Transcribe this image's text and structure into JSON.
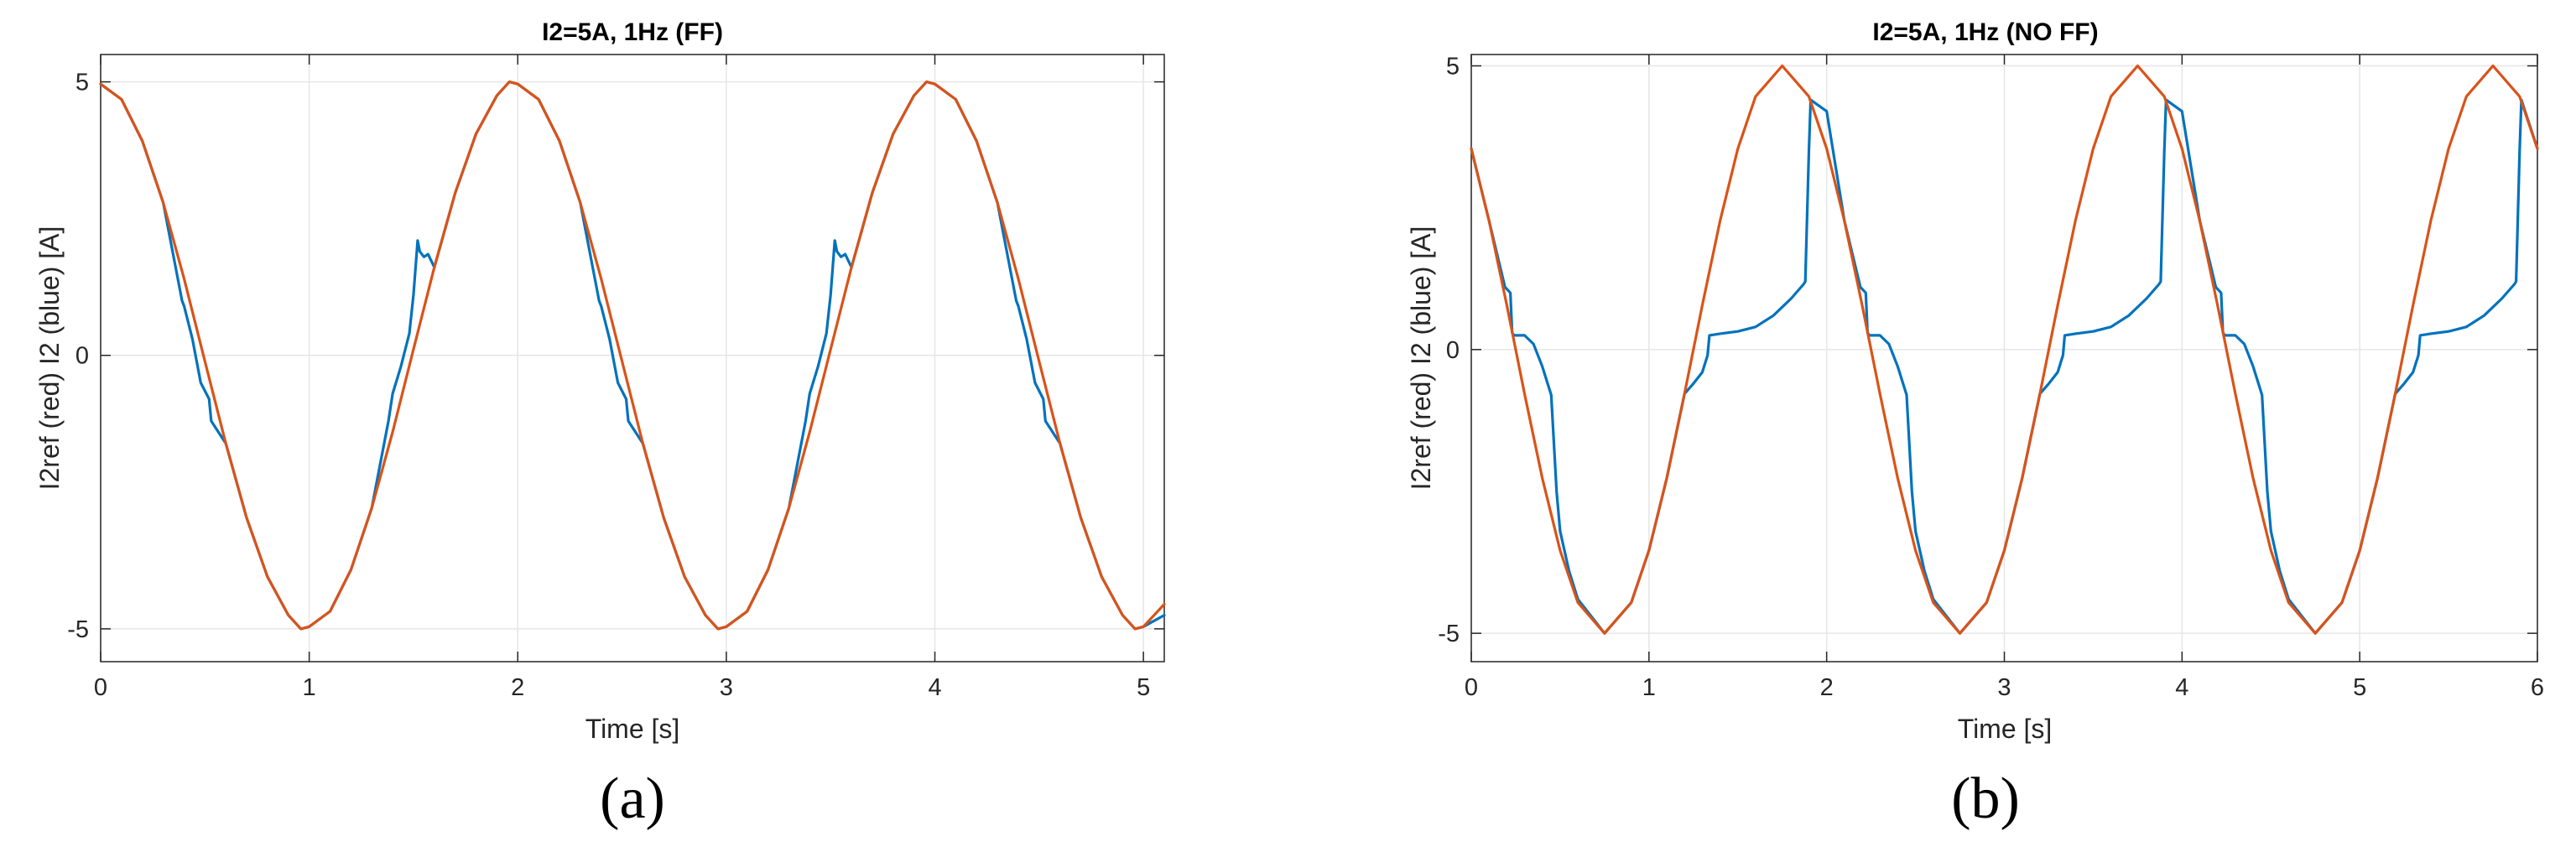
{
  "colors": {
    "measured": "#0072BD",
    "reference": "#D95319",
    "grid": "#e6e6e6",
    "axis": "#262626"
  },
  "chart_data": [
    {
      "type": "line",
      "title": "I2=5A, 1Hz (FF)",
      "panel_label": "(a)",
      "xlabel": "Time [s]",
      "ylabel": "I2ref (red)  I2 (blue) [A]",
      "xlim": [
        0,
        5.1
      ],
      "ylim": [
        -5.6,
        5.5
      ],
      "xticks": [
        0,
        1,
        2,
        3,
        4,
        5
      ],
      "yticks": [
        -5,
        0,
        5
      ],
      "xtick_labels": [
        "0",
        "1",
        "2",
        "3",
        "4",
        "5"
      ],
      "ytick_labels": [
        "-5",
        "0",
        "5"
      ],
      "grid": true,
      "series": [
        {
          "color": "#D95319",
          "x": [
            0,
            0.1,
            0.2,
            0.3,
            0.4,
            0.5,
            0.6,
            0.7,
            0.8,
            0.9,
            0.96,
            1.0,
            1.1,
            1.2,
            1.3,
            1.4,
            1.5,
            1.6,
            1.7,
            1.8,
            1.9,
            1.96,
            2.0,
            2.1,
            2.2,
            2.3,
            2.4,
            2.5,
            2.6,
            2.7,
            2.8,
            2.9,
            2.96,
            3.0,
            3.1,
            3.2,
            3.3,
            3.4,
            3.5,
            3.6,
            3.7,
            3.8,
            3.9,
            3.96,
            4.0,
            4.1,
            4.2,
            4.3,
            4.4,
            4.5,
            4.6,
            4.7,
            4.8,
            4.9,
            4.96,
            5.0,
            5.1
          ],
          "y": [
            4.96,
            4.68,
            3.92,
            2.79,
            1.4,
            -0.11,
            -1.61,
            -2.97,
            -4.05,
            -4.75,
            -5.0,
            -4.96,
            -4.68,
            -3.92,
            -2.79,
            -1.4,
            0.11,
            1.61,
            2.97,
            4.05,
            4.75,
            5.0,
            4.96,
            4.68,
            3.92,
            2.79,
            1.4,
            -0.11,
            -1.61,
            -2.97,
            -4.05,
            -4.75,
            -5.0,
            -4.96,
            -4.68,
            -3.92,
            -2.79,
            -1.4,
            0.11,
            1.61,
            2.97,
            4.05,
            4.75,
            5.0,
            4.96,
            4.68,
            3.92,
            2.79,
            1.4,
            -0.11,
            -1.61,
            -2.97,
            -4.05,
            -4.75,
            -5.0,
            -4.96,
            -4.55
          ]
        },
        {
          "color": "#0072BD",
          "x": [
            0,
            0.1,
            0.2,
            0.3,
            0.39,
            0.4,
            0.44,
            0.48,
            0.52,
            0.53,
            0.6,
            0.7,
            0.8,
            0.9,
            0.96,
            1.0,
            1.1,
            1.2,
            1.3,
            1.38,
            1.4,
            1.44,
            1.48,
            1.5,
            1.52,
            1.53,
            1.55,
            1.57,
            1.6,
            1.7,
            1.8,
            1.9,
            1.96,
            2.0,
            2.1,
            2.2,
            2.3,
            2.39,
            2.4,
            2.44,
            2.48,
            2.52,
            2.53,
            2.6,
            2.7,
            2.8,
            2.9,
            2.96,
            3.0,
            3.1,
            3.2,
            3.3,
            3.38,
            3.4,
            3.44,
            3.48,
            3.5,
            3.52,
            3.53,
            3.55,
            3.57,
            3.6,
            3.7,
            3.8,
            3.9,
            3.96,
            4.0,
            4.1,
            4.2,
            4.3,
            4.39,
            4.4,
            4.44,
            4.48,
            4.52,
            4.53,
            4.6,
            4.7,
            4.8,
            4.9,
            4.96,
            5.0,
            5.1
          ],
          "y": [
            4.96,
            4.68,
            3.92,
            2.79,
            1.0,
            0.9,
            0.3,
            -0.5,
            -0.8,
            -1.2,
            -1.61,
            -2.97,
            -4.05,
            -4.75,
            -5.0,
            -4.96,
            -4.68,
            -3.92,
            -2.79,
            -1.2,
            -0.7,
            -0.2,
            0.4,
            1.1,
            2.1,
            1.9,
            1.8,
            1.85,
            1.61,
            2.97,
            4.05,
            4.75,
            5.0,
            4.96,
            4.68,
            3.92,
            2.79,
            1.0,
            0.9,
            0.3,
            -0.5,
            -0.8,
            -1.2,
            -1.61,
            -2.97,
            -4.05,
            -4.75,
            -5.0,
            -4.96,
            -4.68,
            -3.92,
            -2.79,
            -1.2,
            -0.7,
            -0.2,
            0.4,
            1.1,
            2.1,
            1.9,
            1.8,
            1.85,
            1.61,
            2.97,
            4.05,
            4.75,
            5.0,
            4.96,
            4.68,
            3.92,
            2.79,
            1.0,
            0.9,
            0.3,
            -0.5,
            -0.8,
            -1.2,
            -1.61,
            -2.97,
            -4.05,
            -4.75,
            -5.0,
            -4.96,
            -4.75
          ]
        }
      ]
    },
    {
      "type": "line",
      "title": "I2=5A, 1Hz (NO FF)",
      "panel_label": "(b)",
      "xlabel": "Time [s]",
      "ylabel": "I2ref (red)  I2 (blue) [A]",
      "xlim": [
        0,
        6
      ],
      "ylim": [
        -5.5,
        5.2
      ],
      "xticks": [
        0,
        1,
        2,
        3,
        4,
        5,
        6
      ],
      "yticks": [
        -5,
        0,
        5
      ],
      "xtick_labels": [
        "0",
        "1",
        "2",
        "3",
        "4",
        "5",
        "6"
      ],
      "ytick_labels": [
        "-5",
        "0",
        "5"
      ],
      "grid": true,
      "series": [
        {
          "color": "#D95319",
          "x": [
            0,
            0.1,
            0.2,
            0.3,
            0.4,
            0.5,
            0.6,
            0.75,
            0.9,
            1.0,
            1.1,
            1.2,
            1.3,
            1.4,
            1.5,
            1.6,
            1.75,
            1.9,
            2.0,
            2.1,
            2.2,
            2.3,
            2.4,
            2.5,
            2.6,
            2.75,
            2.9,
            3.0,
            3.1,
            3.2,
            3.3,
            3.4,
            3.5,
            3.6,
            3.75,
            3.9,
            4.0,
            4.1,
            4.2,
            4.3,
            4.4,
            4.5,
            4.6,
            4.75,
            4.9,
            5.0,
            5.1,
            5.2,
            5.3,
            5.4,
            5.5,
            5.6,
            5.75,
            5.9,
            6.0
          ],
          "y": [
            3.54,
            2.27,
            0.78,
            -0.78,
            -2.27,
            -3.54,
            -4.46,
            -5.0,
            -4.46,
            -3.54,
            -2.27,
            -0.78,
            0.78,
            2.27,
            3.54,
            4.46,
            5.0,
            4.46,
            3.54,
            2.27,
            0.78,
            -0.78,
            -2.27,
            -3.54,
            -4.46,
            -5.0,
            -4.46,
            -3.54,
            -2.27,
            -0.78,
            0.78,
            2.27,
            3.54,
            4.46,
            5.0,
            4.46,
            3.54,
            2.27,
            0.78,
            -0.78,
            -2.27,
            -3.54,
            -4.46,
            -5.0,
            -4.46,
            -3.54,
            -2.27,
            -0.78,
            0.78,
            2.27,
            3.54,
            4.46,
            5.0,
            4.46,
            3.54
          ]
        },
        {
          "color": "#0072BD",
          "x": [
            0,
            0.1,
            0.19,
            0.22,
            0.23,
            0.24,
            0.3,
            0.35,
            0.4,
            0.45,
            0.48,
            0.5,
            0.55,
            0.6,
            0.75,
            0.9,
            1.0,
            1.1,
            1.2,
            1.25,
            1.3,
            1.33,
            1.34,
            1.4,
            1.5,
            1.6,
            1.7,
            1.8,
            1.87,
            1.88,
            1.9,
            1.91,
            2.0,
            2.1,
            2.19,
            2.22,
            2.23,
            2.24,
            2.3,
            2.35,
            2.4,
            2.45,
            2.48,
            2.5,
            2.55,
            2.6,
            2.75,
            2.9,
            3.0,
            3.1,
            3.2,
            3.25,
            3.3,
            3.33,
            3.34,
            3.4,
            3.5,
            3.6,
            3.7,
            3.8,
            3.87,
            3.88,
            3.9,
            3.91,
            4.0,
            4.1,
            4.19,
            4.22,
            4.23,
            4.24,
            4.3,
            4.35,
            4.4,
            4.45,
            4.48,
            4.5,
            4.55,
            4.6,
            4.75,
            4.9,
            5.0,
            5.1,
            5.2,
            5.25,
            5.3,
            5.33,
            5.34,
            5.4,
            5.5,
            5.6,
            5.7,
            5.8,
            5.87,
            5.88,
            5.9,
            5.91,
            6.0
          ],
          "y": [
            3.54,
            2.27,
            1.1,
            1.0,
            0.3,
            0.25,
            0.25,
            0.1,
            -0.3,
            -0.8,
            -2.5,
            -3.2,
            -3.9,
            -4.4,
            -5.0,
            -4.46,
            -3.54,
            -2.27,
            -0.78,
            -0.6,
            -0.4,
            -0.1,
            0.25,
            0.28,
            0.32,
            0.4,
            0.6,
            0.9,
            1.15,
            1.2,
            3.5,
            4.4,
            4.2,
            2.27,
            1.1,
            1.0,
            0.3,
            0.25,
            0.25,
            0.1,
            -0.3,
            -0.8,
            -2.5,
            -3.2,
            -3.9,
            -4.4,
            -5.0,
            -4.46,
            -3.54,
            -2.27,
            -0.78,
            -0.6,
            -0.4,
            -0.1,
            0.25,
            0.28,
            0.32,
            0.4,
            0.6,
            0.9,
            1.15,
            1.2,
            3.5,
            4.4,
            4.2,
            2.27,
            1.1,
            1.0,
            0.3,
            0.25,
            0.25,
            0.1,
            -0.3,
            -0.8,
            -2.5,
            -3.2,
            -3.9,
            -4.4,
            -5.0,
            -4.46,
            -3.54,
            -2.27,
            -0.78,
            -0.6,
            -0.4,
            -0.1,
            0.25,
            0.28,
            0.32,
            0.4,
            0.6,
            0.9,
            1.15,
            1.2,
            3.5,
            4.4,
            3.54
          ]
        }
      ]
    }
  ]
}
